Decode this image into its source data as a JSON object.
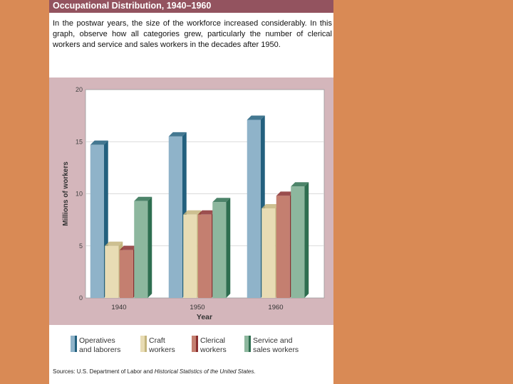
{
  "figure": {
    "caption": "In the postwar years, the size of the workforce increased considerably. In this graph, observe how all categories grew, particularly the number of clerical workers and service and sales workers in the decades after 1950.",
    "sources_prefix": "Sources: U.S. Department of Labor and ",
    "sources_title": "Historical Statistics of the United States."
  },
  "chart_data": {
    "type": "bar",
    "title": "Occupational Distribution, 1940–1960",
    "xlabel": "Year",
    "ylabel": "Millions of workers",
    "categories": [
      "1940",
      "1950",
      "1960"
    ],
    "ylim": [
      0,
      20
    ],
    "yticks": [
      0,
      5,
      10,
      15,
      20
    ],
    "grid": true,
    "legend_position": "bottom",
    "series": [
      {
        "name": "Operatives\nand laborers",
        "values": [
          14.7,
          15.5,
          17.1
        ],
        "color": "#8fb3c9",
        "side_color": "#23607e"
      },
      {
        "name": "Craft\nworkers",
        "values": [
          5.0,
          8.0,
          8.6
        ],
        "color": "#e8dcb4",
        "side_color": "#c4b57e"
      },
      {
        "name": "Clerical\nworkers",
        "values": [
          4.6,
          8.0,
          9.8
        ],
        "color": "#c47f70",
        "side_color": "#8b3030"
      },
      {
        "name": "Service and\nsales workers",
        "values": [
          9.3,
          9.2,
          10.7
        ],
        "color": "#8db79e",
        "side_color": "#2e6e50"
      }
    ]
  }
}
